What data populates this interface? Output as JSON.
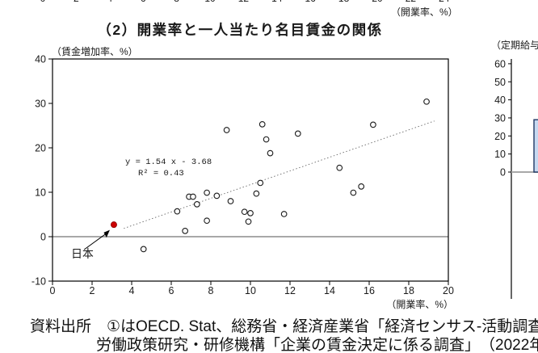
{
  "header": {
    "clipped_axis_above": {
      "tick_labels": [
        "0",
        "2",
        "4",
        "6",
        "8",
        "10",
        "12",
        "14",
        "16",
        "18",
        "20",
        "22",
        "24"
      ],
      "axis_unit_label": "（開業率、%）"
    },
    "title": "（2）開業率と一人当たり名目賃金の関係"
  },
  "chart_data": [
    {
      "type": "scatter",
      "title": "（2）開業率と一人当たり名目賃金の関係",
      "xlabel": "（開業率、%）",
      "ylabel": "（賃金増加率、%）",
      "xlim": [
        0,
        20
      ],
      "ylim": [
        -10,
        40
      ],
      "x_ticks": [
        0,
        2,
        4,
        6,
        8,
        10,
        12,
        14,
        16,
        18,
        20
      ],
      "y_ticks": [
        40,
        30,
        20,
        10,
        0,
        -10
      ],
      "grid": false,
      "zero_line": true,
      "zero_line_color": "#a8a8a8",
      "points": [
        [
          4.6,
          -2.8
        ],
        [
          6.3,
          5.7
        ],
        [
          6.7,
          1.3
        ],
        [
          6.9,
          9.0
        ],
        [
          7.1,
          9.0
        ],
        [
          7.3,
          7.3
        ],
        [
          7.8,
          9.9
        ],
        [
          7.8,
          3.6
        ],
        [
          8.3,
          9.2
        ],
        [
          8.8,
          24.0
        ],
        [
          9.0,
          8.0
        ],
        [
          9.7,
          5.6
        ],
        [
          9.9,
          3.4
        ],
        [
          10.0,
          5.3
        ],
        [
          10.3,
          9.7
        ],
        [
          10.5,
          12.1
        ],
        [
          10.6,
          25.3
        ],
        [
          10.8,
          21.9
        ],
        [
          11.0,
          18.8
        ],
        [
          11.7,
          5.1
        ],
        [
          12.4,
          23.2
        ],
        [
          14.5,
          15.5
        ],
        [
          15.2,
          9.9
        ],
        [
          15.6,
          11.3
        ],
        [
          16.2,
          25.2
        ],
        [
          18.9,
          30.4
        ]
      ],
      "highlight_point": {
        "x": 3.1,
        "y": 2.7,
        "label": "日本",
        "color": "#cc0000"
      },
      "trendline": {
        "slope": 1.54,
        "intercept": -3.68,
        "x_start": 3.6,
        "x_end": 19.3,
        "equation_label": "y = 1.54 x - 3.68",
        "r2_label": "R² = 0.43"
      }
    },
    {
      "type": "bar",
      "ylabel": "（定期給与",
      "ylim": [
        0,
        60
      ],
      "y_ticks": [
        60,
        50,
        40,
        30,
        20,
        10,
        0
      ],
      "categories": [
        ""
      ],
      "values": [
        29
      ],
      "bar_fill": "#c6d9f1",
      "bar_border": "#1f3864",
      "zero_line_color": "#a8a8a8"
    }
  ],
  "source": {
    "line1": "資料出所　①はOECD. Stat、総務省・経済産業省「経済センサス-活動調査",
    "line2": "労働政策研究・研修機構「企業の賃金決定に係る調査」　（2022年"
  }
}
